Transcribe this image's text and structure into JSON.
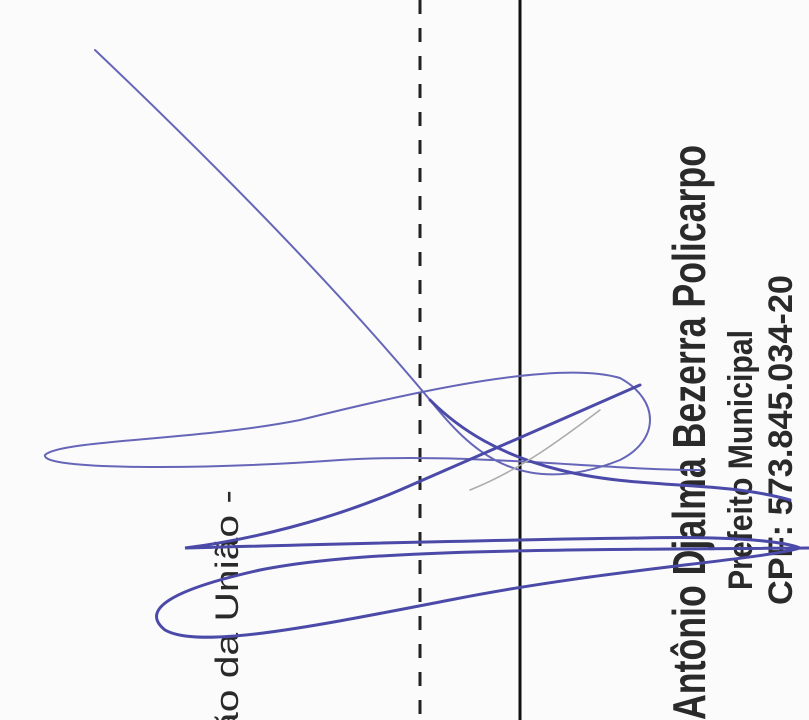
{
  "document": {
    "fragment": "ão da União -",
    "signer": {
      "name": "Antônio Djalma Bezerra Policarpo",
      "role": "Prefeito Municipal",
      "cpf": "CPF: 573.845.034-20"
    }
  }
}
